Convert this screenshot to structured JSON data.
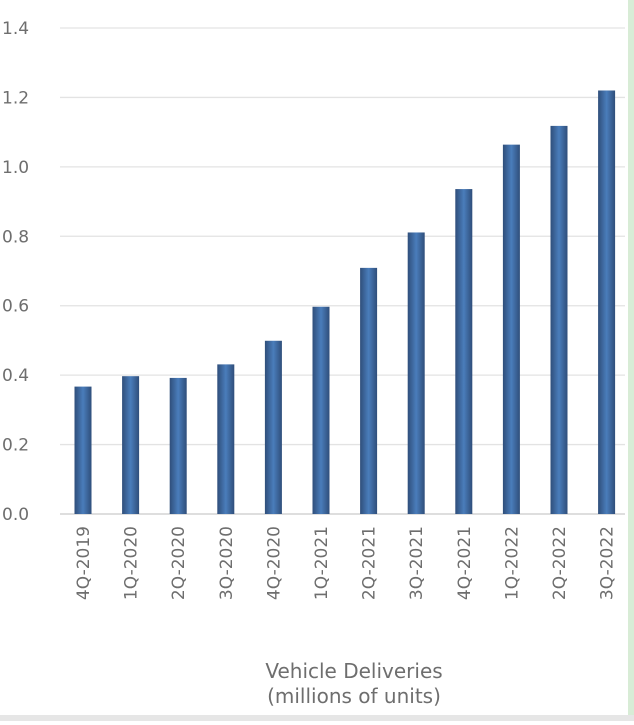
{
  "chart_data": {
    "type": "bar",
    "categories": [
      "4Q-2019",
      "1Q-2020",
      "2Q-2020",
      "3Q-2020",
      "4Q-2020",
      "1Q-2021",
      "2Q-2021",
      "3Q-2021",
      "4Q-2021",
      "1Q-2022",
      "2Q-2022",
      "3Q-2022"
    ],
    "values": [
      0.367,
      0.397,
      0.392,
      0.431,
      0.499,
      0.597,
      0.709,
      0.811,
      0.936,
      1.064,
      1.118,
      1.22
    ],
    "title": "",
    "xlabel_lines": [
      "Vehicle Deliveries",
      "(millions of units)"
    ],
    "ylabel": "",
    "ylim": [
      0,
      1.4
    ],
    "yticks": [
      "0.0",
      "0.2",
      "0.4",
      "0.6",
      "0.8",
      "1.0",
      "1.2",
      "1.4"
    ],
    "grid": true,
    "legend": "none",
    "colors": {
      "bar_dark": "#2f4e7a",
      "bar_light": "#4a7dbb",
      "grid": "#e3e3e3"
    }
  }
}
